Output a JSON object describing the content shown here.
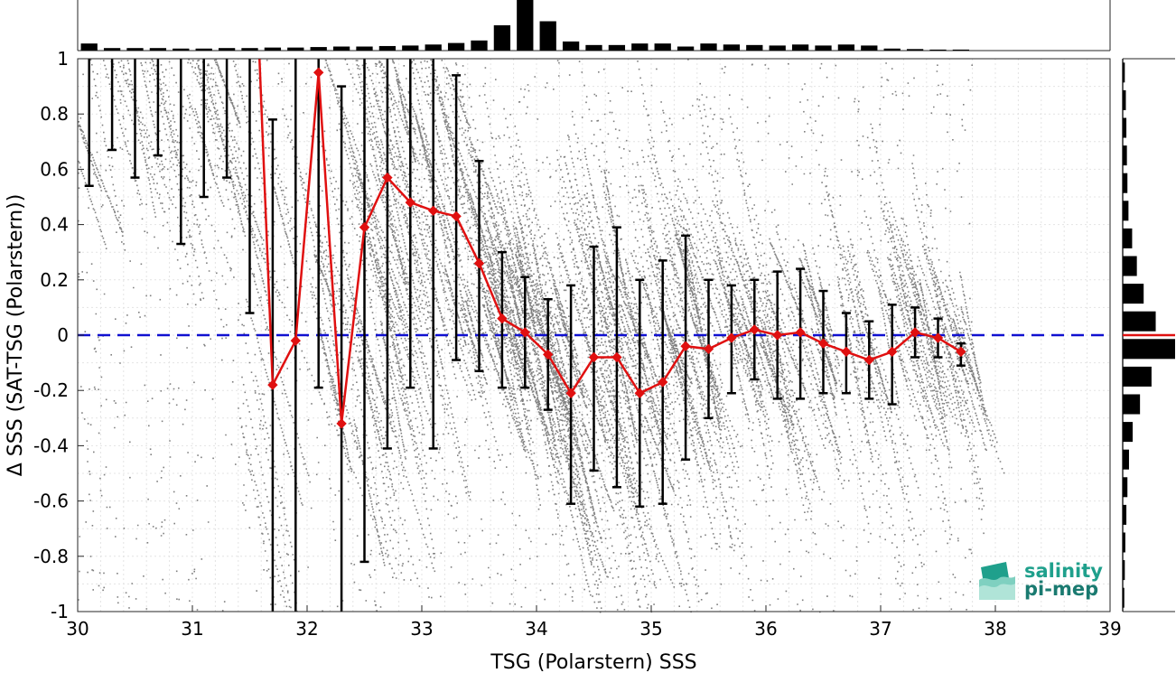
{
  "chart_data": {
    "type": "scatter",
    "xlabel": "TSG (Polarstern) SSS",
    "ylabel": "Δ SSS (SAT-TSG (Polarstern))",
    "xlim": [
      30,
      39
    ],
    "ylim": [
      -1,
      1
    ],
    "xticks": [
      "30",
      "31",
      "32",
      "33",
      "34",
      "35",
      "36",
      "37",
      "38",
      "39"
    ],
    "yticks": [
      "-1",
      "-0.8",
      "-0.6",
      "-0.4",
      "-0.2",
      "0",
      "0.2",
      "0.4",
      "0.6",
      "0.8",
      "1"
    ],
    "grid": true,
    "reference_line": {
      "y": 0,
      "color": "#1010d0",
      "style": "dashed"
    },
    "scatter_color": "#808080",
    "median_series": {
      "color": "#e01010",
      "x": [
        31.7,
        31.9,
        32.1,
        32.3,
        32.5,
        32.7,
        32.9,
        33.1,
        33.3,
        33.5,
        33.7,
        33.9,
        34.1,
        34.3,
        34.5,
        34.7,
        34.9,
        35.1,
        35.3,
        35.5,
        35.7,
        35.9,
        36.1,
        36.3,
        36.5,
        36.7,
        36.9,
        37.1,
        37.3,
        37.5,
        37.7
      ],
      "y": [
        -0.18,
        -0.02,
        0.95,
        -0.32,
        0.39,
        0.57,
        0.48,
        0.45,
        0.43,
        0.26,
        0.06,
        0.01,
        -0.07,
        -0.21,
        -0.08,
        -0.08,
        -0.21,
        -0.17,
        -0.04,
        -0.05,
        -0.01,
        0.02,
        0.0,
        0.01,
        -0.03,
        -0.06,
        -0.09,
        -0.06,
        0.01,
        -0.01,
        -0.06
      ]
    },
    "error_bars": {
      "color": "#000000",
      "x": [
        30.1,
        30.3,
        30.5,
        30.7,
        30.9,
        31.1,
        31.3,
        31.5,
        31.7,
        31.9,
        32.1,
        32.3,
        32.5,
        32.7,
        32.9,
        33.1,
        33.3,
        33.5,
        33.7,
        33.9,
        34.1,
        34.3,
        34.5,
        34.7,
        34.9,
        35.1,
        35.3,
        35.5,
        35.7,
        35.9,
        36.1,
        36.3,
        36.5,
        36.7,
        36.9,
        37.1,
        37.3,
        37.5,
        37.7
      ],
      "lower": [
        0.54,
        0.67,
        0.57,
        0.65,
        0.33,
        0.5,
        0.57,
        0.08,
        -1.0,
        -1.0,
        -0.19,
        -1.0,
        -0.82,
        -0.41,
        -0.19,
        -0.41,
        -0.09,
        -0.13,
        -0.19,
        -0.19,
        -0.27,
        -0.61,
        -0.49,
        -0.55,
        -0.62,
        -0.61,
        -0.45,
        -0.3,
        -0.21,
        -0.16,
        -0.23,
        -0.23,
        -0.21,
        -0.21,
        -0.23,
        -0.25,
        -0.08,
        -0.08,
        -0.11
      ],
      "upper": [
        1.0,
        1.0,
        1.0,
        1.0,
        1.0,
        1.0,
        1.0,
        1.0,
        0.78,
        1.0,
        1.0,
        0.9,
        1.0,
        1.0,
        1.0,
        1.0,
        0.94,
        0.63,
        0.3,
        0.21,
        0.13,
        0.18,
        0.32,
        0.39,
        0.2,
        0.27,
        0.36,
        0.2,
        0.18,
        0.2,
        0.23,
        0.24,
        0.16,
        0.08,
        0.05,
        0.11,
        0.1,
        0.06,
        -0.03
      ]
    },
    "top_histogram": {
      "x": [
        30.1,
        30.3,
        30.5,
        30.7,
        30.9,
        31.1,
        31.3,
        31.5,
        31.7,
        31.9,
        32.1,
        32.3,
        32.5,
        32.7,
        32.9,
        33.1,
        33.3,
        33.5,
        33.7,
        33.9,
        34.1,
        34.3,
        34.5,
        34.7,
        34.9,
        35.1,
        35.3,
        35.5,
        35.7,
        35.9,
        36.1,
        36.3,
        36.5,
        36.7,
        36.9,
        37.1,
        37.3,
        37.5,
        37.7
      ],
      "values": [
        0.14,
        0.05,
        0.05,
        0.05,
        0.04,
        0.04,
        0.05,
        0.05,
        0.06,
        0.06,
        0.07,
        0.08,
        0.08,
        0.09,
        0.1,
        0.12,
        0.15,
        0.2,
        0.5,
        1.0,
        0.58,
        0.18,
        0.11,
        0.11,
        0.14,
        0.14,
        0.08,
        0.14,
        0.12,
        0.11,
        0.1,
        0.12,
        0.1,
        0.12,
        0.1,
        0.04,
        0.03,
        0.02,
        0.02
      ]
    },
    "right_histogram": {
      "y": [
        0.95,
        0.85,
        0.75,
        0.65,
        0.55,
        0.45,
        0.35,
        0.25,
        0.15,
        0.05,
        -0.05,
        -0.15,
        -0.25,
        -0.35,
        -0.45,
        -0.55,
        -0.65,
        -0.75,
        -0.85,
        -0.95
      ],
      "values": [
        0.04,
        0.06,
        0.07,
        0.08,
        0.09,
        0.11,
        0.18,
        0.27,
        0.4,
        0.63,
        1.0,
        0.55,
        0.33,
        0.19,
        0.12,
        0.09,
        0.07,
        0.05,
        0.04,
        0.03
      ]
    }
  },
  "logo": {
    "line1": "salinity",
    "line2": "pi-mep",
    "color": "#1fa08c"
  }
}
